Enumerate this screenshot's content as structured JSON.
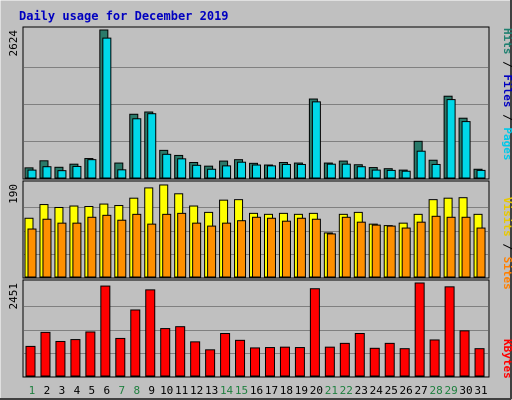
{
  "title": "Daily usage for December 2019",
  "colors": {
    "background": "#c0c0c0",
    "frame_light": "#ffffff",
    "frame_dark": "#404040",
    "gridline": "#808080",
    "title": "#0000c0",
    "hits_front": "#00d8e8",
    "hits_back": "#2a7a6a",
    "files_front": "#00c8f0",
    "pages_label": "#00c8e8",
    "files_label": "#0000c0",
    "hits_label": "#208070",
    "visits_front": "#ffff00",
    "sites_front": "#ff9000",
    "sites_label": "#ff8000",
    "visits_label": "#e8c800",
    "kbytes_front": "#ff0000",
    "kbytes_label": "#ff0000",
    "weekday_label": "#000000",
    "weekend_label": "#208040"
  },
  "legend": {
    "pages": "Pages",
    "files": "Files",
    "hits": "Hits",
    "sites": "Sites",
    "visits": "Visits",
    "kbytes": "KBytes",
    "sep": " / "
  },
  "chart_data": {
    "type": "bar",
    "title": "Daily usage for December 2019",
    "days": [
      "1",
      "2",
      "3",
      "4",
      "5",
      "6",
      "7",
      "8",
      "9",
      "10",
      "11",
      "12",
      "13",
      "14",
      "15",
      "16",
      "17",
      "18",
      "19",
      "20",
      "21",
      "22",
      "23",
      "24",
      "25",
      "26",
      "27",
      "28",
      "29",
      "30",
      "31"
    ],
    "weekend_days": [
      "1",
      "7",
      "8",
      "14",
      "15",
      "21",
      "22",
      "28",
      "29"
    ],
    "panels": [
      {
        "id": "hits",
        "scale_max_label": "2624",
        "ymax": 2624,
        "series": [
          {
            "name": "Hits",
            "values": [
              180,
              305,
              190,
              245,
              345,
              2624,
              265,
              1130,
              1170,
              490,
              400,
              275,
              210,
              300,
              325,
              260,
              230,
              275,
              265,
              1400,
              265,
              300,
              235,
              185,
              165,
              140,
              650,
              315,
              1450,
              1060,
              155
            ]
          },
          {
            "name": "Files",
            "values": [
              140,
              200,
              130,
              205,
              325,
              2480,
              145,
              1050,
              1140,
              420,
              340,
              225,
              155,
              215,
              280,
              230,
              215,
              240,
              240,
              1350,
              245,
              245,
              200,
              140,
              135,
              120,
              475,
              240,
              1390,
              1000,
              135
            ]
          },
          {
            "name": "Pages",
            "values": []
          }
        ]
      },
      {
        "id": "visits",
        "scale_max_label": "190",
        "ymax": 190,
        "series": [
          {
            "name": "Visits",
            "values": [
              120,
              148,
              142,
              145,
              144,
              149,
              146,
              161,
              182,
              188,
              170,
              145,
              132,
              157,
              158,
              130,
              128,
              130,
              128,
              130,
              90,
              128,
              132,
              108,
              105,
              110,
              128,
              158,
              161,
              162,
              128
            ]
          },
          {
            "name": "Sites",
            "values": [
              98,
              118,
              110,
              110,
              122,
              126,
              116,
              128,
              108,
              128,
              130,
              110,
              104,
              110,
              115,
              122,
              120,
              114,
              120,
              118,
              88,
              122,
              112,
              106,
              104,
              100,
              112,
              124,
              122,
              122,
              100
            ]
          }
        ]
      },
      {
        "id": "kbytes",
        "scale_max_label": "2451",
        "ymax": 2451,
        "series": [
          {
            "name": "KBytes",
            "values": [
              780,
              1150,
              910,
              960,
              1160,
              2370,
              990,
              1740,
              2270,
              1250,
              1300,
              900,
              690,
              1120,
              940,
              740,
              750,
              760,
              750,
              2300,
              760,
              860,
              1120,
              730,
              860,
              720,
              2451,
              950,
              2350,
              1190,
              720
            ]
          }
        ]
      }
    ]
  }
}
